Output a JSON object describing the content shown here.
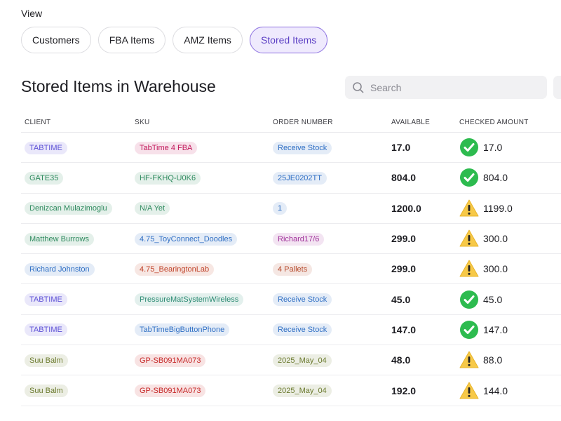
{
  "view_label": "View",
  "tabs": [
    {
      "label": "Customers",
      "selected": false
    },
    {
      "label": "FBA Items",
      "selected": false
    },
    {
      "label": "AMZ Items",
      "selected": false
    },
    {
      "label": "Stored Items",
      "selected": true
    }
  ],
  "heading": "Stored Items in Warehouse",
  "search_placeholder": "Search",
  "table": {
    "columns": [
      "CLIENT",
      "SKU",
      "ORDER NUMBER",
      "AVAILABLE",
      "CHECKED AMOUNT"
    ],
    "rows": [
      {
        "client": {
          "text": "TABTIME",
          "color": "#5b4fd6"
        },
        "sku": {
          "text": "TabTime 4 FBA",
          "color": "#c2185b"
        },
        "order": {
          "text": "Receive Stock",
          "color": "#2f6fc4"
        },
        "available": "17.0",
        "checked": {
          "icon": "check",
          "amount": "17.0"
        }
      },
      {
        "client": {
          "text": "GATE35",
          "color": "#2e8a5e"
        },
        "sku": {
          "text": "HF-FKHQ-U0K6",
          "color": "#2e8a5e"
        },
        "order": {
          "text": "25JE0202TT",
          "color": "#2f6fc4"
        },
        "available": "804.0",
        "checked": {
          "icon": "check",
          "amount": "804.0"
        }
      },
      {
        "client": {
          "text": "Denizcan Mulazimoglu",
          "color": "#2e8a5e"
        },
        "sku": {
          "text": "N/A Yet",
          "color": "#2e8a5e"
        },
        "order": {
          "text": "1",
          "color": "#2f6fc4"
        },
        "available": "1200.0",
        "checked": {
          "icon": "warning",
          "amount": "1199.0"
        }
      },
      {
        "client": {
          "text": "Matthew Burrows",
          "color": "#2e8a5e"
        },
        "sku": {
          "text": "4.75_ToyConnect_Doodles",
          "color": "#2f6fc4"
        },
        "order": {
          "text": "Richard17/6",
          "color": "#a0309a"
        },
        "available": "299.0",
        "checked": {
          "icon": "warning",
          "amount": "300.0"
        }
      },
      {
        "client": {
          "text": "Richard Johnston",
          "color": "#2f6fc4"
        },
        "sku": {
          "text": "4.75_BearingtonLab",
          "color": "#c0432a"
        },
        "order": {
          "text": "4 Pallets",
          "color": "#b5482a"
        },
        "available": "299.0",
        "checked": {
          "icon": "warning",
          "amount": "300.0"
        }
      },
      {
        "client": {
          "text": "TABTIME",
          "color": "#5b4fd6"
        },
        "sku": {
          "text": "PressureMatSystemWireless",
          "color": "#2a8a72"
        },
        "order": {
          "text": "Receive Stock",
          "color": "#2f6fc4"
        },
        "available": "45.0",
        "checked": {
          "icon": "check",
          "amount": "45.0"
        }
      },
      {
        "client": {
          "text": "TABTIME",
          "color": "#5b4fd6"
        },
        "sku": {
          "text": "TabTimeBigButtonPhone",
          "color": "#2f6fc4"
        },
        "order": {
          "text": "Receive Stock",
          "color": "#2f6fc4"
        },
        "available": "147.0",
        "checked": {
          "icon": "check",
          "amount": "147.0"
        }
      },
      {
        "client": {
          "text": "Suu Balm",
          "color": "#6b7a2e"
        },
        "sku": {
          "text": "GP-SB091MA073",
          "color": "#c62828"
        },
        "order": {
          "text": "2025_May_04",
          "color": "#6b7a2e"
        },
        "available": "48.0",
        "checked": {
          "icon": "warning",
          "amount": "88.0"
        }
      },
      {
        "client": {
          "text": "Suu Balm",
          "color": "#6b7a2e"
        },
        "sku": {
          "text": "GP-SB091MA073",
          "color": "#c62828"
        },
        "order": {
          "text": "2025_May_04",
          "color": "#6b7a2e"
        },
        "available": "192.0",
        "checked": {
          "icon": "warning",
          "amount": "144.0"
        }
      }
    ]
  }
}
